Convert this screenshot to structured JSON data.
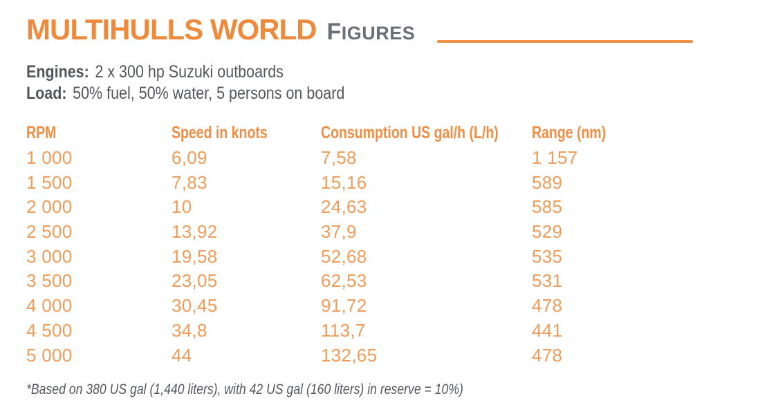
{
  "header": {
    "title_main": "MULTIHULLS WORLD",
    "title_sub_initial": "F",
    "title_sub_rest": "IGURES"
  },
  "specs": [
    {
      "label": "Engines:",
      "value": "2 x 300 hp Suzuki outboards"
    },
    {
      "label": "Load:",
      "value": "50% fuel, 50% water, 5 persons on board"
    }
  ],
  "table": {
    "columns": [
      "RPM",
      "Speed in knots",
      "Consumption US gal/h (L/h)",
      "Range (nm)"
    ],
    "rows": [
      [
        "1 000",
        "6,09",
        "7,58",
        "1 157"
      ],
      [
        "1 500",
        "7,83",
        "15,16",
        "589"
      ],
      [
        "2 000",
        "10",
        "24,63",
        "585"
      ],
      [
        "2 500",
        "13,92",
        "37,9",
        "529"
      ],
      [
        "3 000",
        "19,58",
        "52,68",
        "535"
      ],
      [
        "3 500",
        "23,05",
        "62,53",
        "531"
      ],
      [
        "4 000",
        "30,45",
        "91,72",
        "478"
      ],
      [
        "4 500",
        "34,8",
        "113,7",
        "441"
      ],
      [
        "5 000",
        "44",
        "132,65",
        "478"
      ]
    ]
  },
  "chart_data": {
    "type": "table",
    "title": "MULTIHULLS WORLD Figures",
    "categories": [
      1000,
      1500,
      2000,
      2500,
      3000,
      3500,
      4000,
      4500,
      5000
    ],
    "xlabel": "RPM",
    "series": [
      {
        "name": "Speed in knots",
        "values": [
          6.09,
          7.83,
          10,
          13.92,
          19.58,
          23.05,
          30.45,
          34.8,
          44
        ]
      },
      {
        "name": "Consumption US gal/h (L/h)",
        "values": [
          7.58,
          15.16,
          24.63,
          37.9,
          52.68,
          62.53,
          91.72,
          113.7,
          132.65
        ]
      },
      {
        "name": "Range (nm)",
        "values": [
          1157,
          589,
          585,
          529,
          535,
          531,
          478,
          441,
          478
        ]
      }
    ]
  },
  "footnote": "*Based on 380 US gal (1,440 liters), with 42 US gal (160 liters) in reserve = 10%)",
  "colors": {
    "title_orange": "#EE8A3C",
    "rule_orange": "#EB9349",
    "header_orange": "#EF8E44",
    "value_orange": "#F09C5A",
    "heading_gray": "#6B7078",
    "text_gray": "#55575B"
  }
}
